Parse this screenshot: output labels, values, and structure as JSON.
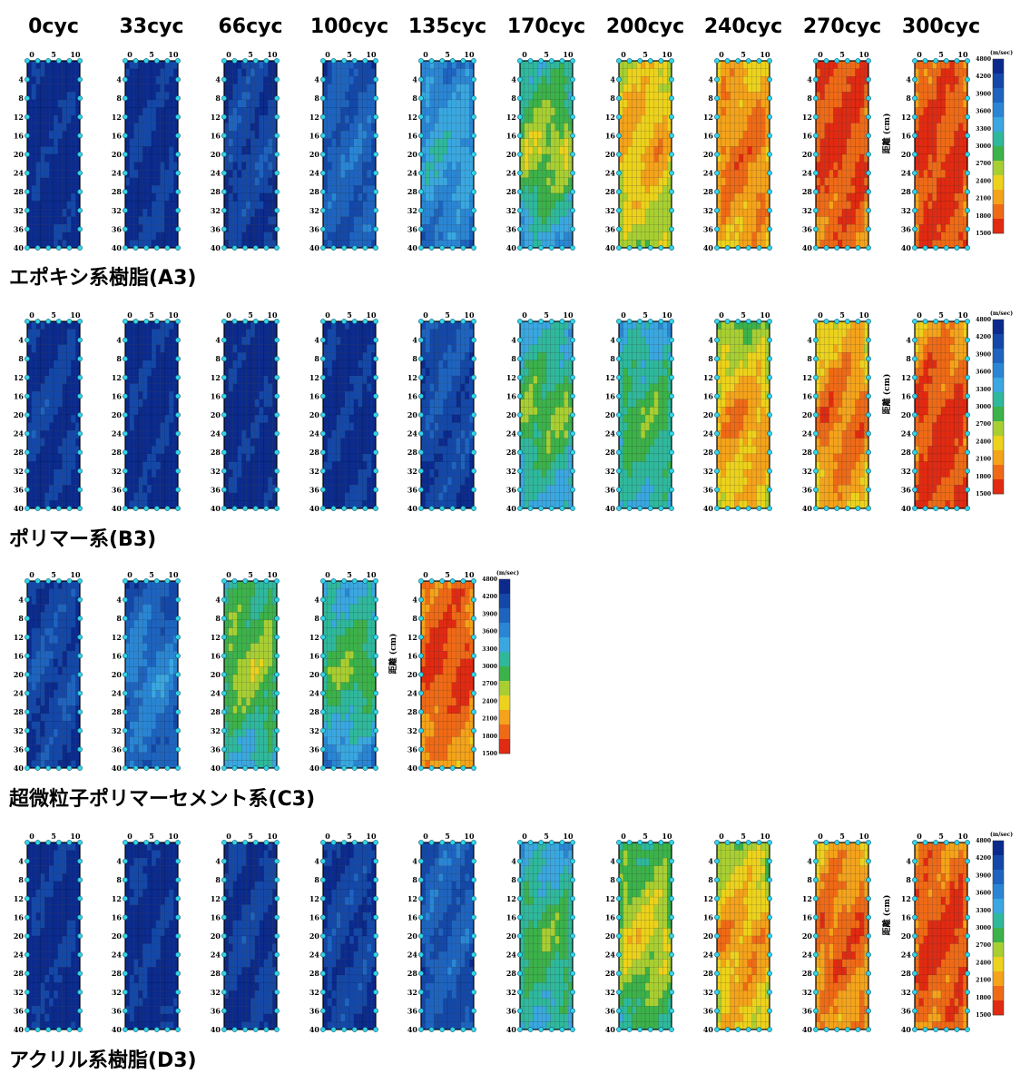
{
  "chart_data": {
    "type": "heatmap",
    "title": "",
    "columns": [
      "0cyc",
      "33cyc",
      "66cyc",
      "100cyc",
      "135cyc",
      "170cyc",
      "200cyc",
      "240cyc",
      "270cyc",
      "300cyc"
    ],
    "x_ticks": [
      "0",
      "5",
      "10"
    ],
    "y_ticks": [
      "4",
      "8",
      "12",
      "16",
      "20",
      "24",
      "28",
      "32",
      "36",
      "40"
    ],
    "ylabel": "距離 (cm)",
    "colorbar": {
      "unit": "(m/sec)",
      "ticks": [
        "4800",
        "4200",
        "3900",
        "3600",
        "3300",
        "3000",
        "2700",
        "2400",
        "2100",
        "1800",
        "1500"
      ],
      "colors": [
        "#0b2a8c",
        "#1448a8",
        "#1e64bf",
        "#2a86d4",
        "#3aa7e0",
        "#2fb89c",
        "#3cb24a",
        "#a8cf32",
        "#ecd21c",
        "#f4a31a",
        "#ef6a16",
        "#e02a12"
      ]
    },
    "rows": [
      {
        "label": "エポキシ系樹脂(A3)",
        "panels": [
          {
            "cycle": "0cyc",
            "level_top": 0.05,
            "level_mid": 0.05,
            "level_bottom": 0.05
          },
          {
            "cycle": "33cyc",
            "level_top": 0.06,
            "level_mid": 0.07,
            "level_bottom": 0.08
          },
          {
            "cycle": "66cyc",
            "level_top": 0.1,
            "level_mid": 0.14,
            "level_bottom": 0.08
          },
          {
            "cycle": "100cyc",
            "level_top": 0.16,
            "level_mid": 0.22,
            "level_bottom": 0.18
          },
          {
            "cycle": "135cyc",
            "level_top": 0.28,
            "level_mid": 0.4,
            "level_bottom": 0.25
          },
          {
            "cycle": "170cyc",
            "level_top": 0.45,
            "level_mid": 0.66,
            "level_bottom": 0.36
          },
          {
            "cycle": "200cyc",
            "level_top": 0.7,
            "level_mid": 0.78,
            "level_bottom": 0.62
          },
          {
            "cycle": "240cyc",
            "level_top": 0.76,
            "level_mid": 0.86,
            "level_bottom": 0.78
          },
          {
            "cycle": "270cyc",
            "level_top": 0.92,
            "level_mid": 0.94,
            "level_bottom": 0.86
          },
          {
            "cycle": "300cyc",
            "level_top": 0.88,
            "level_mid": 0.95,
            "level_bottom": 0.9
          }
        ]
      },
      {
        "label": "ポリマー系(B3)",
        "panels": [
          {
            "cycle": "0cyc",
            "level_top": 0.06,
            "level_mid": 0.1,
            "level_bottom": 0.06
          },
          {
            "cycle": "33cyc",
            "level_top": 0.05,
            "level_mid": 0.05,
            "level_bottom": 0.06
          },
          {
            "cycle": "66cyc",
            "level_top": 0.05,
            "level_mid": 0.05,
            "level_bottom": 0.05
          },
          {
            "cycle": "100cyc",
            "level_top": 0.06,
            "level_mid": 0.06,
            "level_bottom": 0.06
          },
          {
            "cycle": "135cyc",
            "level_top": 0.16,
            "level_mid": 0.14,
            "level_bottom": 0.1
          },
          {
            "cycle": "170cyc",
            "level_top": 0.4,
            "level_mid": 0.6,
            "level_bottom": 0.38
          },
          {
            "cycle": "200cyc",
            "level_top": 0.38,
            "level_mid": 0.56,
            "level_bottom": 0.42
          },
          {
            "cycle": "240cyc",
            "level_top": 0.58,
            "level_mid": 0.82,
            "level_bottom": 0.72
          },
          {
            "cycle": "270cyc",
            "level_top": 0.72,
            "level_mid": 0.88,
            "level_bottom": 0.78
          },
          {
            "cycle": "300cyc",
            "level_top": 0.8,
            "level_mid": 0.95,
            "level_bottom": 0.92
          }
        ]
      },
      {
        "label": "超微粒子ポリマーセメント系(C3)",
        "panels": [
          {
            "cycle": "0cyc",
            "level_top": 0.1,
            "level_mid": 0.14,
            "level_bottom": 0.1
          },
          {
            "cycle": "33cyc",
            "level_top": 0.16,
            "level_mid": 0.3,
            "level_bottom": 0.2
          },
          {
            "cycle": "66cyc",
            "level_top": 0.5,
            "level_mid": 0.62,
            "level_bottom": 0.4
          },
          {
            "cycle": "100cyc",
            "level_top": 0.38,
            "level_mid": 0.58,
            "level_bottom": 0.3
          },
          {
            "cycle": "135cyc",
            "level_top": 0.86,
            "level_mid": 0.94,
            "level_bottom": 0.8
          }
        ]
      },
      {
        "label": "アクリル系樹脂(D3)",
        "panels": [
          {
            "cycle": "0cyc",
            "level_top": 0.06,
            "level_mid": 0.06,
            "level_bottom": 0.06
          },
          {
            "cycle": "33cyc",
            "level_top": 0.05,
            "level_mid": 0.06,
            "level_bottom": 0.06
          },
          {
            "cycle": "66cyc",
            "level_top": 0.08,
            "level_mid": 0.1,
            "level_bottom": 0.08
          },
          {
            "cycle": "100cyc",
            "level_top": 0.1,
            "level_mid": 0.12,
            "level_bottom": 0.1
          },
          {
            "cycle": "135cyc",
            "level_top": 0.2,
            "level_mid": 0.2,
            "level_bottom": 0.16
          },
          {
            "cycle": "170cyc",
            "level_top": 0.36,
            "level_mid": 0.56,
            "level_bottom": 0.42
          },
          {
            "cycle": "200cyc",
            "level_top": 0.52,
            "level_mid": 0.7,
            "level_bottom": 0.5
          },
          {
            "cycle": "240cyc",
            "level_top": 0.62,
            "level_mid": 0.82,
            "level_bottom": 0.72
          },
          {
            "cycle": "270cyc",
            "level_top": 0.78,
            "level_mid": 0.9,
            "level_bottom": 0.8
          },
          {
            "cycle": "300cyc",
            "level_top": 0.84,
            "level_mid": 0.95,
            "level_bottom": 0.86
          }
        ]
      }
    ]
  }
}
